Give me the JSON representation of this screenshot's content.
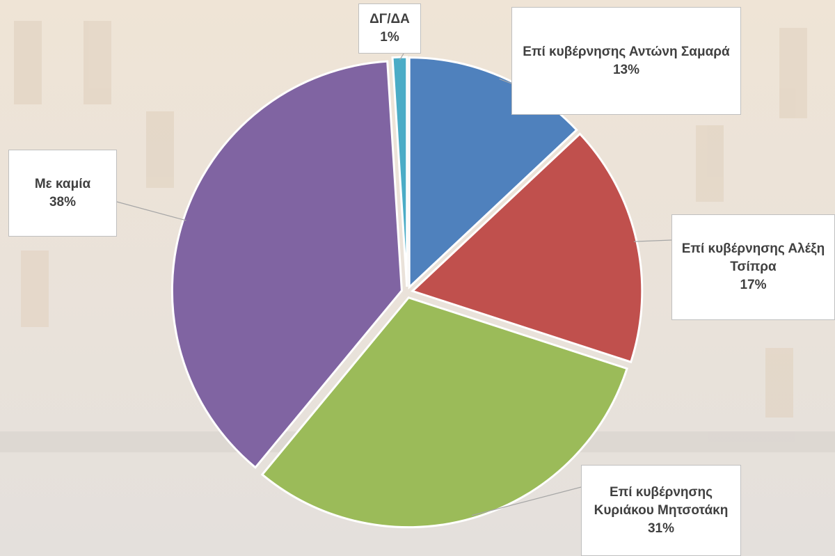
{
  "chart_data": {
    "type": "pie",
    "categories": [
      "Επί κυβέρνησης Αντώνη Σαμαρά",
      "Επί κυβέρνησης Αλέξη Τσίπρα",
      "Επί κυβέρνησης Κυριάκου Μητσοτάκη",
      "Με καμία",
      "ΔΓ/ΔΑ"
    ],
    "values": [
      13,
      17,
      31,
      38,
      1
    ],
    "value_labels": [
      "13%",
      "17%",
      "31%",
      "38%",
      "1%"
    ],
    "colors": [
      "#4f81bd",
      "#c0504d",
      "#9bbb59",
      "#8064a2",
      "#4bacc6"
    ]
  }
}
